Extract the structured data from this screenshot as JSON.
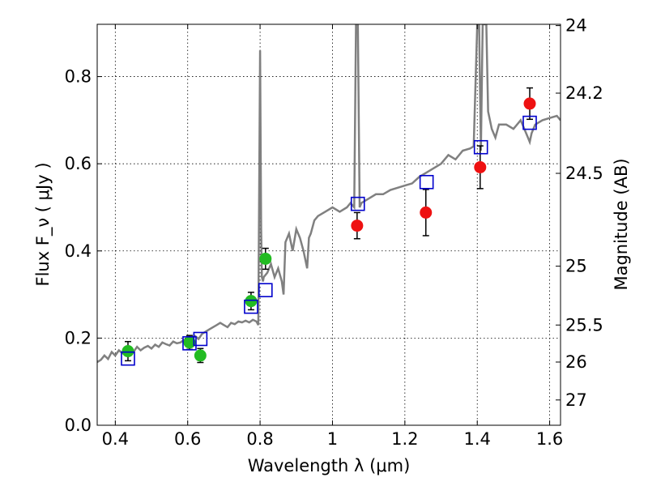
{
  "chart_data": {
    "type": "scatter",
    "xlabel": "Wavelength  λ (μm)",
    "ylabel": "Flux  F_ν  ( μJy )",
    "ylabel_right": "Magnitude (AB)",
    "xlim": [
      0.35,
      1.63
    ],
    "ylim": [
      0.0,
      0.92
    ],
    "grid": true,
    "x_ticks": [
      0.4,
      0.6,
      0.8,
      1.0,
      1.2,
      1.4,
      1.6
    ],
    "x_tick_labels": [
      "0.4",
      "0.6",
      "0.8",
      "1",
      "1.2",
      "1.4",
      "1.6"
    ],
    "y_ticks": [
      0.0,
      0.2,
      0.4,
      0.6,
      0.8
    ],
    "y_tick_labels": [
      "0.0",
      "0.2",
      "0.4",
      "0.6",
      "0.8"
    ],
    "right_ticks": [
      {
        "label": "24",
        "flux": 0.917
      },
      {
        "label": "24.2",
        "flux": 0.762
      },
      {
        "label": "24.5",
        "flux": 0.578
      },
      {
        "label": "25",
        "flux": 0.365
      },
      {
        "label": "25.5",
        "flux": 0.23
      },
      {
        "label": "26",
        "flux": 0.145
      },
      {
        "label": "27",
        "flux": 0.058
      }
    ],
    "colors": {
      "model": "#808080",
      "green_points": "#22bb22",
      "red_points": "#ee1111",
      "model_boxes": "#0000cc",
      "errorbars": "#000000"
    },
    "model_spectrum": {
      "x": [
        0.35,
        0.36,
        0.37,
        0.38,
        0.39,
        0.4,
        0.41,
        0.42,
        0.43,
        0.44,
        0.45,
        0.46,
        0.47,
        0.48,
        0.49,
        0.5,
        0.51,
        0.52,
        0.53,
        0.54,
        0.55,
        0.56,
        0.57,
        0.58,
        0.59,
        0.6,
        0.61,
        0.62,
        0.63,
        0.64,
        0.65,
        0.66,
        0.67,
        0.68,
        0.69,
        0.7,
        0.71,
        0.72,
        0.73,
        0.74,
        0.75,
        0.76,
        0.77,
        0.78,
        0.79,
        0.795,
        0.8,
        0.803,
        0.805,
        0.808,
        0.81,
        0.82,
        0.83,
        0.84,
        0.85,
        0.86,
        0.865,
        0.87,
        0.88,
        0.89,
        0.9,
        0.91,
        0.92,
        0.93,
        0.935,
        0.94,
        0.95,
        0.96,
        0.98,
        1.0,
        1.02,
        1.04,
        1.05,
        1.06,
        1.065,
        1.07,
        1.075,
        1.08,
        1.1,
        1.12,
        1.14,
        1.16,
        1.18,
        1.2,
        1.22,
        1.24,
        1.26,
        1.28,
        1.3,
        1.32,
        1.34,
        1.36,
        1.38,
        1.39,
        1.4,
        1.405,
        1.41,
        1.415,
        1.42,
        1.425,
        1.43,
        1.44,
        1.45,
        1.46,
        1.48,
        1.5,
        1.52,
        1.54,
        1.545,
        1.55,
        1.56,
        1.58,
        1.6,
        1.62,
        1.63
      ],
      "y": [
        0.145,
        0.15,
        0.16,
        0.152,
        0.168,
        0.16,
        0.172,
        0.165,
        0.17,
        0.175,
        0.168,
        0.18,
        0.172,
        0.178,
        0.182,
        0.176,
        0.185,
        0.18,
        0.19,
        0.186,
        0.183,
        0.192,
        0.188,
        0.19,
        0.196,
        0.195,
        0.2,
        0.205,
        0.198,
        0.21,
        0.215,
        0.22,
        0.225,
        0.23,
        0.235,
        0.23,
        0.225,
        0.235,
        0.232,
        0.238,
        0.236,
        0.24,
        0.236,
        0.242,
        0.238,
        0.23,
        0.86,
        0.45,
        0.34,
        0.33,
        0.34,
        0.35,
        0.37,
        0.34,
        0.36,
        0.33,
        0.3,
        0.42,
        0.44,
        0.4,
        0.45,
        0.43,
        0.4,
        0.36,
        0.43,
        0.44,
        0.47,
        0.48,
        0.49,
        0.5,
        0.49,
        0.5,
        0.51,
        0.5,
        0.92,
        0.92,
        0.5,
        0.51,
        0.52,
        0.53,
        0.53,
        0.54,
        0.545,
        0.55,
        0.555,
        0.57,
        0.58,
        0.59,
        0.6,
        0.62,
        0.61,
        0.63,
        0.635,
        0.64,
        0.92,
        0.92,
        0.63,
        0.92,
        0.92,
        0.92,
        0.72,
        0.68,
        0.66,
        0.69,
        0.69,
        0.68,
        0.7,
        0.66,
        0.65,
        0.67,
        0.69,
        0.7,
        0.705,
        0.71,
        0.7
      ]
    },
    "green_points": {
      "x": [
        0.435,
        0.605,
        0.635,
        0.775,
        0.815
      ],
      "y": [
        0.17,
        0.19,
        0.16,
        0.285,
        0.382
      ],
      "yerr": [
        0.022,
        0.016,
        0.016,
        0.02,
        0.024
      ]
    },
    "red_points": {
      "x": [
        1.068,
        1.258,
        1.408,
        1.545
      ],
      "y": [
        0.458,
        0.488,
        0.592,
        0.738
      ],
      "yerr": [
        0.03,
        0.053,
        0.049,
        0.036
      ]
    },
    "model_boxes": {
      "x": [
        0.435,
        0.605,
        0.635,
        0.775,
        0.815,
        1.07,
        1.26,
        1.41,
        1.545
      ],
      "y": [
        0.153,
        0.188,
        0.198,
        0.272,
        0.31,
        0.508,
        0.558,
        0.638,
        0.694
      ]
    }
  }
}
